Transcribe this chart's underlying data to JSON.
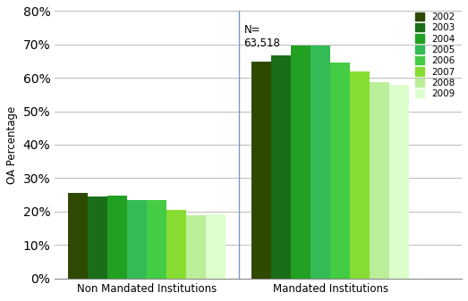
{
  "categories": [
    "Non Mandated Institutions",
    "Mandated Institutions"
  ],
  "years": [
    "2002",
    "2003",
    "2004",
    "2005",
    "2006",
    "2007",
    "2008",
    "2009"
  ],
  "values": {
    "Non Mandated Institutions": [
      0.255,
      0.244,
      0.248,
      0.235,
      0.235,
      0.205,
      0.189,
      0.192
    ],
    "Mandated Institutions": [
      0.648,
      0.668,
      0.698,
      0.698,
      0.645,
      0.618,
      0.588,
      0.578
    ]
  },
  "colors": [
    "#2d4a00",
    "#1a6e1a",
    "#22a022",
    "#33bb55",
    "#44cc44",
    "#88dd33",
    "#bbee99",
    "#ddffcc"
  ],
  "ylabel": "OA Percentage",
  "ylim": [
    0,
    0.8
  ],
  "yticks": [
    0.0,
    0.1,
    0.2,
    0.3,
    0.4,
    0.5,
    0.6,
    0.7,
    0.8
  ],
  "annotation_text": "N=\n63,518",
  "background_color": "#ffffff",
  "grid_color": "#bbbbbb",
  "vline_color": "#7799cc",
  "figsize": [
    5.23,
    3.37
  ],
  "dpi": 100
}
